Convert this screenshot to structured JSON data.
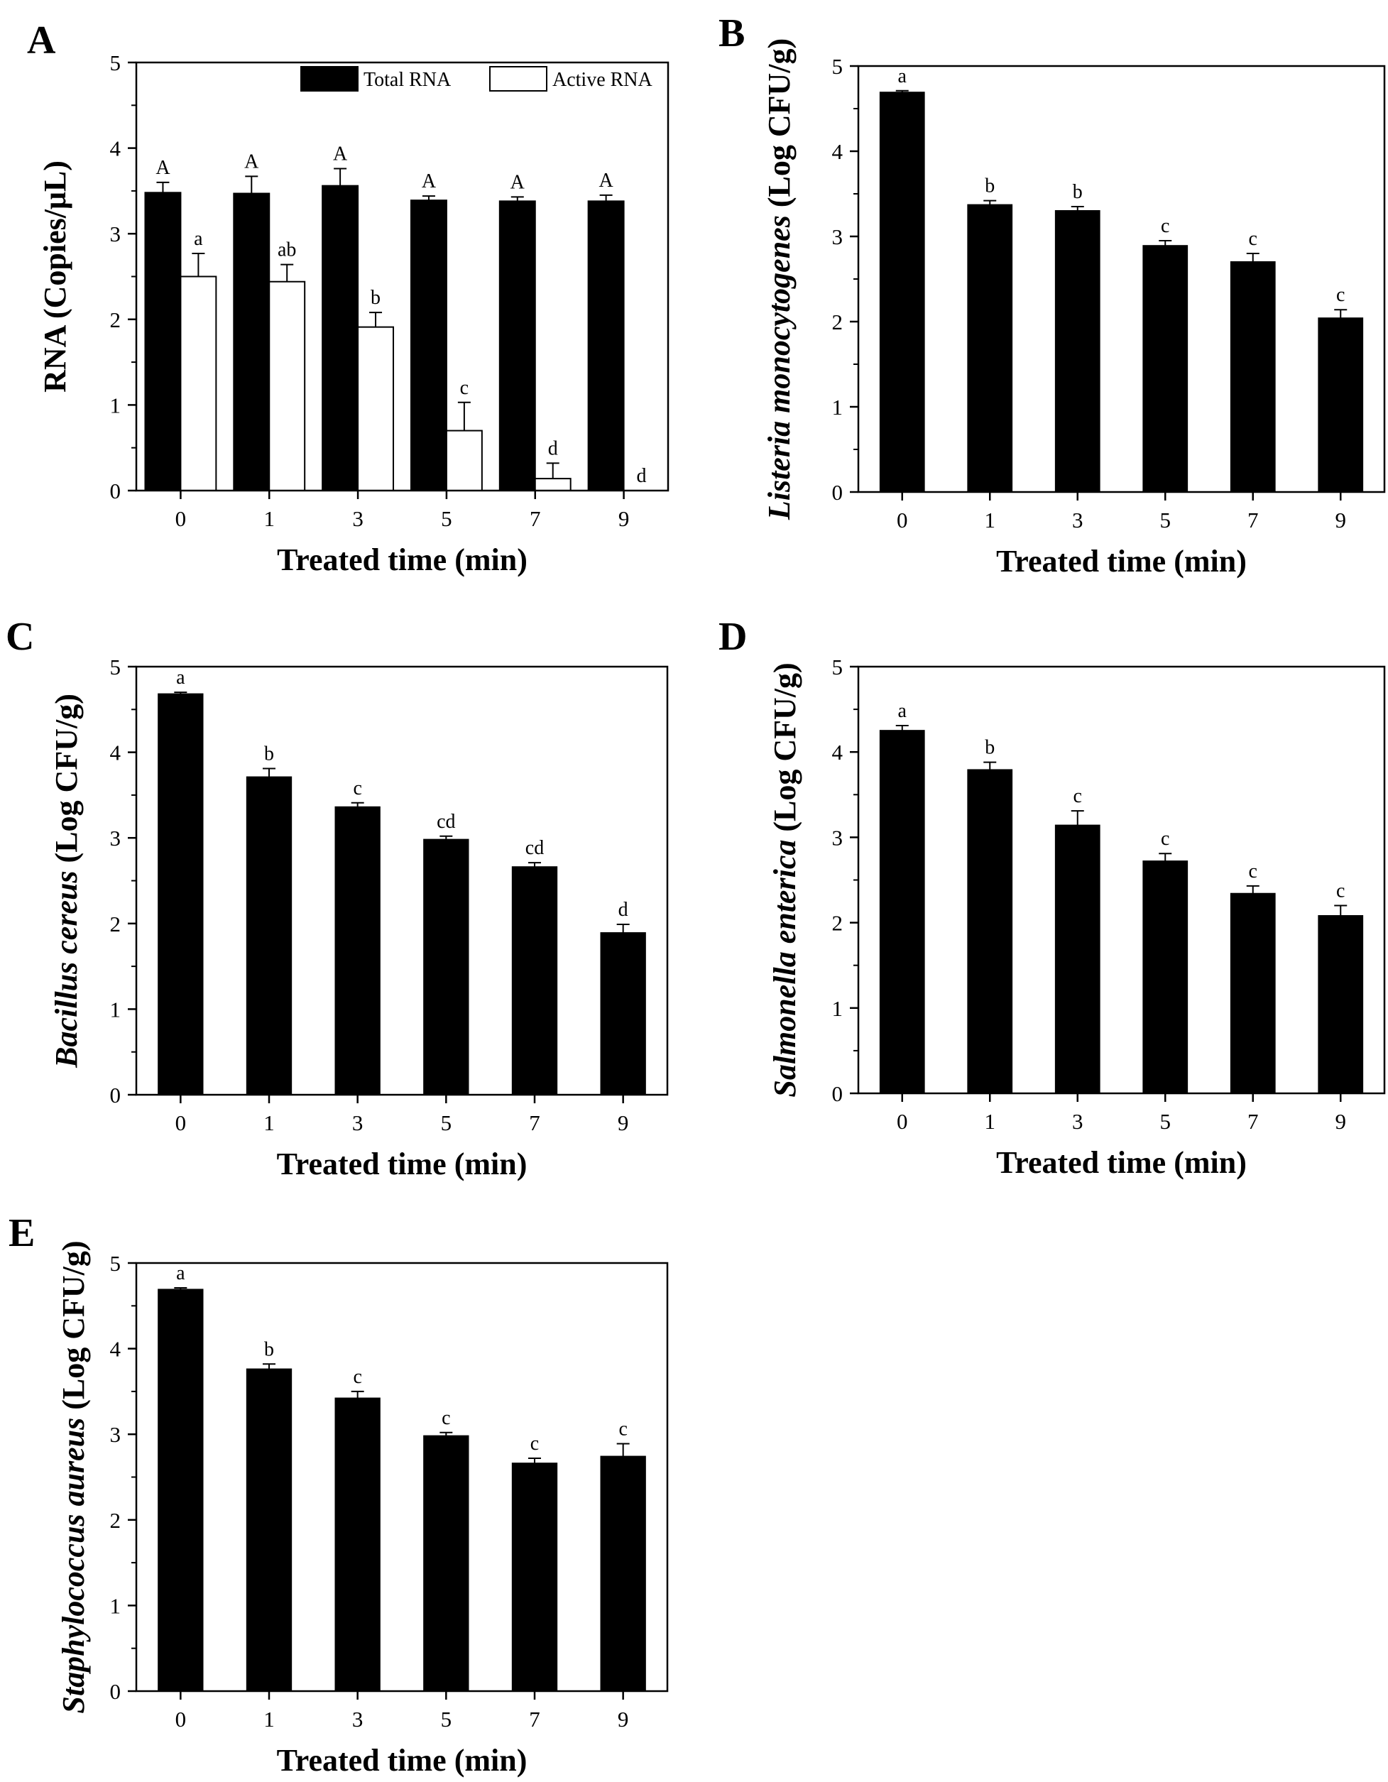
{
  "chart_data": [
    {
      "panel": "A",
      "type": "bar",
      "xlabel": "Treated time (min)",
      "ylabel": "RNA (Copies/μL)",
      "ylim": [
        0,
        5
      ],
      "yticks": [
        0,
        1,
        2,
        3,
        4,
        5
      ],
      "categories": [
        "0",
        "1",
        "3",
        "5",
        "7",
        "9"
      ],
      "legend_position": "top-right",
      "series": [
        {
          "name": "Total RNA",
          "color": "#000000",
          "values": [
            3.48,
            3.47,
            3.56,
            3.39,
            3.38,
            3.38
          ],
          "errors": [
            0.12,
            0.2,
            0.2,
            0.05,
            0.05,
            0.07
          ],
          "labels": [
            "A",
            "A",
            "A",
            "A",
            "A",
            "A"
          ]
        },
        {
          "name": "Active RNA",
          "color": "#ffffff",
          "values": [
            2.5,
            2.44,
            1.91,
            0.7,
            0.14,
            0.0
          ],
          "errors": [
            0.27,
            0.2,
            0.17,
            0.33,
            0.18,
            0.0
          ],
          "labels": [
            "a",
            "ab",
            "b",
            "c",
            "d",
            "d"
          ]
        }
      ]
    },
    {
      "panel": "B",
      "type": "bar",
      "xlabel": "Treated time (min)",
      "ylabel": "Listeria monocytogenes (Log CFU/g)",
      "ylabel_italic": "Listeria monocytogenes",
      "ylabel_rest": " (Log CFU/g)",
      "ylim": [
        0,
        5
      ],
      "yticks": [
        0,
        1,
        2,
        3,
        4,
        5
      ],
      "categories": [
        "0",
        "1",
        "3",
        "5",
        "7",
        "9"
      ],
      "series": [
        {
          "color": "#000000",
          "values": [
            4.69,
            3.37,
            3.3,
            2.89,
            2.7,
            2.04
          ],
          "errors": [
            0.02,
            0.05,
            0.05,
            0.06,
            0.1,
            0.1
          ],
          "labels": [
            "a",
            "b",
            "b",
            "c",
            "c",
            "c"
          ]
        }
      ]
    },
    {
      "panel": "C",
      "type": "bar",
      "xlabel": "Treated time (min)",
      "ylabel": "Bacillus cereus (Log CFU/g)",
      "ylabel_italic": "Bacillus cereus",
      "ylabel_rest": " (Log CFU/g)",
      "ylim": [
        0,
        5
      ],
      "yticks": [
        0,
        1,
        2,
        3,
        4,
        5
      ],
      "categories": [
        "0",
        "1",
        "3",
        "5",
        "7",
        "9"
      ],
      "series": [
        {
          "color": "#000000",
          "values": [
            4.68,
            3.71,
            3.36,
            2.98,
            2.66,
            1.89
          ],
          "errors": [
            0.02,
            0.1,
            0.05,
            0.04,
            0.05,
            0.1
          ],
          "labels": [
            "a",
            "b",
            "c",
            "cd",
            "cd",
            "d"
          ]
        }
      ]
    },
    {
      "panel": "D",
      "type": "bar",
      "xlabel": "Treated time (min)",
      "ylabel": "Salmonella enterica (Log CFU/g)",
      "ylabel_italic": "Salmonella enterica",
      "ylabel_rest": " (Log CFU/g)",
      "ylim": [
        0,
        5
      ],
      "yticks": [
        0,
        1,
        2,
        3,
        4,
        5
      ],
      "categories": [
        "0",
        "1",
        "3",
        "5",
        "7",
        "9"
      ],
      "series": [
        {
          "color": "#000000",
          "values": [
            4.25,
            3.79,
            3.14,
            2.72,
            2.34,
            2.08
          ],
          "errors": [
            0.06,
            0.09,
            0.17,
            0.09,
            0.09,
            0.12
          ],
          "labels": [
            "a",
            "b",
            "c",
            "c",
            "c",
            "c"
          ]
        }
      ]
    },
    {
      "panel": "E",
      "type": "bar",
      "xlabel": "Treated time (min)",
      "ylabel": "Staphylococcus aureus (Log CFU/g)",
      "ylabel_italic": "Staphylococcus aureus",
      "ylabel_rest": " (Log CFU/g)",
      "ylim": [
        0,
        5
      ],
      "yticks": [
        0,
        1,
        2,
        3,
        4,
        5
      ],
      "categories": [
        "0",
        "1",
        "3",
        "5",
        "7",
        "9"
      ],
      "series": [
        {
          "color": "#000000",
          "values": [
            4.69,
            3.76,
            3.42,
            2.98,
            2.66,
            2.74
          ],
          "errors": [
            0.02,
            0.06,
            0.08,
            0.04,
            0.06,
            0.15
          ],
          "labels": [
            "a",
            "b",
            "c",
            "c",
            "c",
            "c"
          ]
        }
      ]
    }
  ]
}
